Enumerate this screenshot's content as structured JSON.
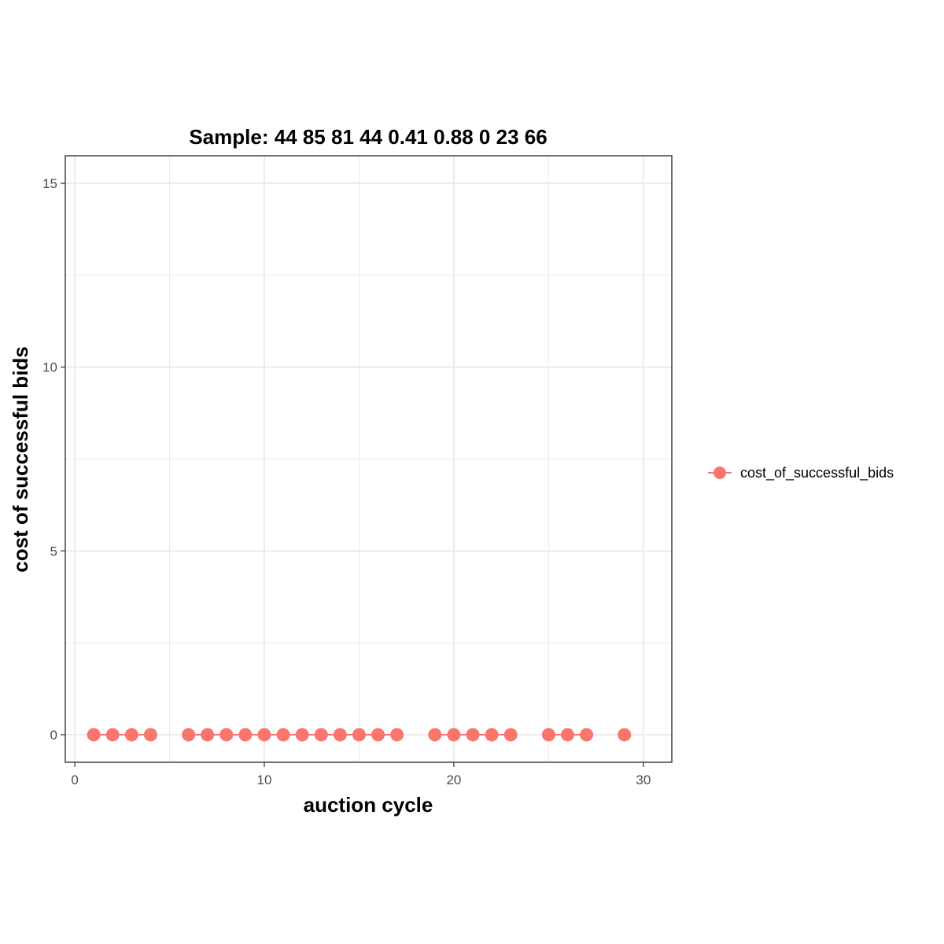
{
  "chart_data": {
    "type": "line",
    "title": "Sample: 44 85 81 44 0.41 0.88 0 23 66",
    "xlabel": "auction cycle",
    "ylabel": "cost of successful bids",
    "xlim": [
      -0.5,
      31.5
    ],
    "ylim": [
      -0.75,
      15.75
    ],
    "x_ticks": [
      0,
      10,
      20,
      30
    ],
    "y_ticks": [
      0,
      5,
      10,
      15
    ],
    "x_tick_labels": [
      "0",
      "10",
      "20",
      "30"
    ],
    "y_tick_labels": [
      "0",
      "5",
      "10",
      "15"
    ],
    "grid": true,
    "legend_position": "right",
    "series": [
      {
        "name": "cost_of_successful_bids",
        "color": "#F8766D",
        "segments": [
          {
            "x": [
              1,
              2,
              3,
              4
            ],
            "y": [
              0,
              0,
              0,
              0
            ]
          },
          {
            "x": [
              6,
              7,
              8,
              9,
              10,
              11,
              12,
              13,
              14,
              15,
              16,
              17
            ],
            "y": [
              0,
              0,
              0,
              0,
              0,
              0,
              0,
              0,
              0,
              0,
              0,
              0
            ]
          },
          {
            "x": [
              19,
              20,
              21,
              22,
              23
            ],
            "y": [
              0,
              0,
              0,
              0,
              0
            ]
          },
          {
            "x": [
              25,
              26,
              27
            ],
            "y": [
              0,
              0,
              0
            ]
          },
          {
            "x": [
              29
            ],
            "y": [
              0
            ]
          }
        ]
      }
    ]
  }
}
